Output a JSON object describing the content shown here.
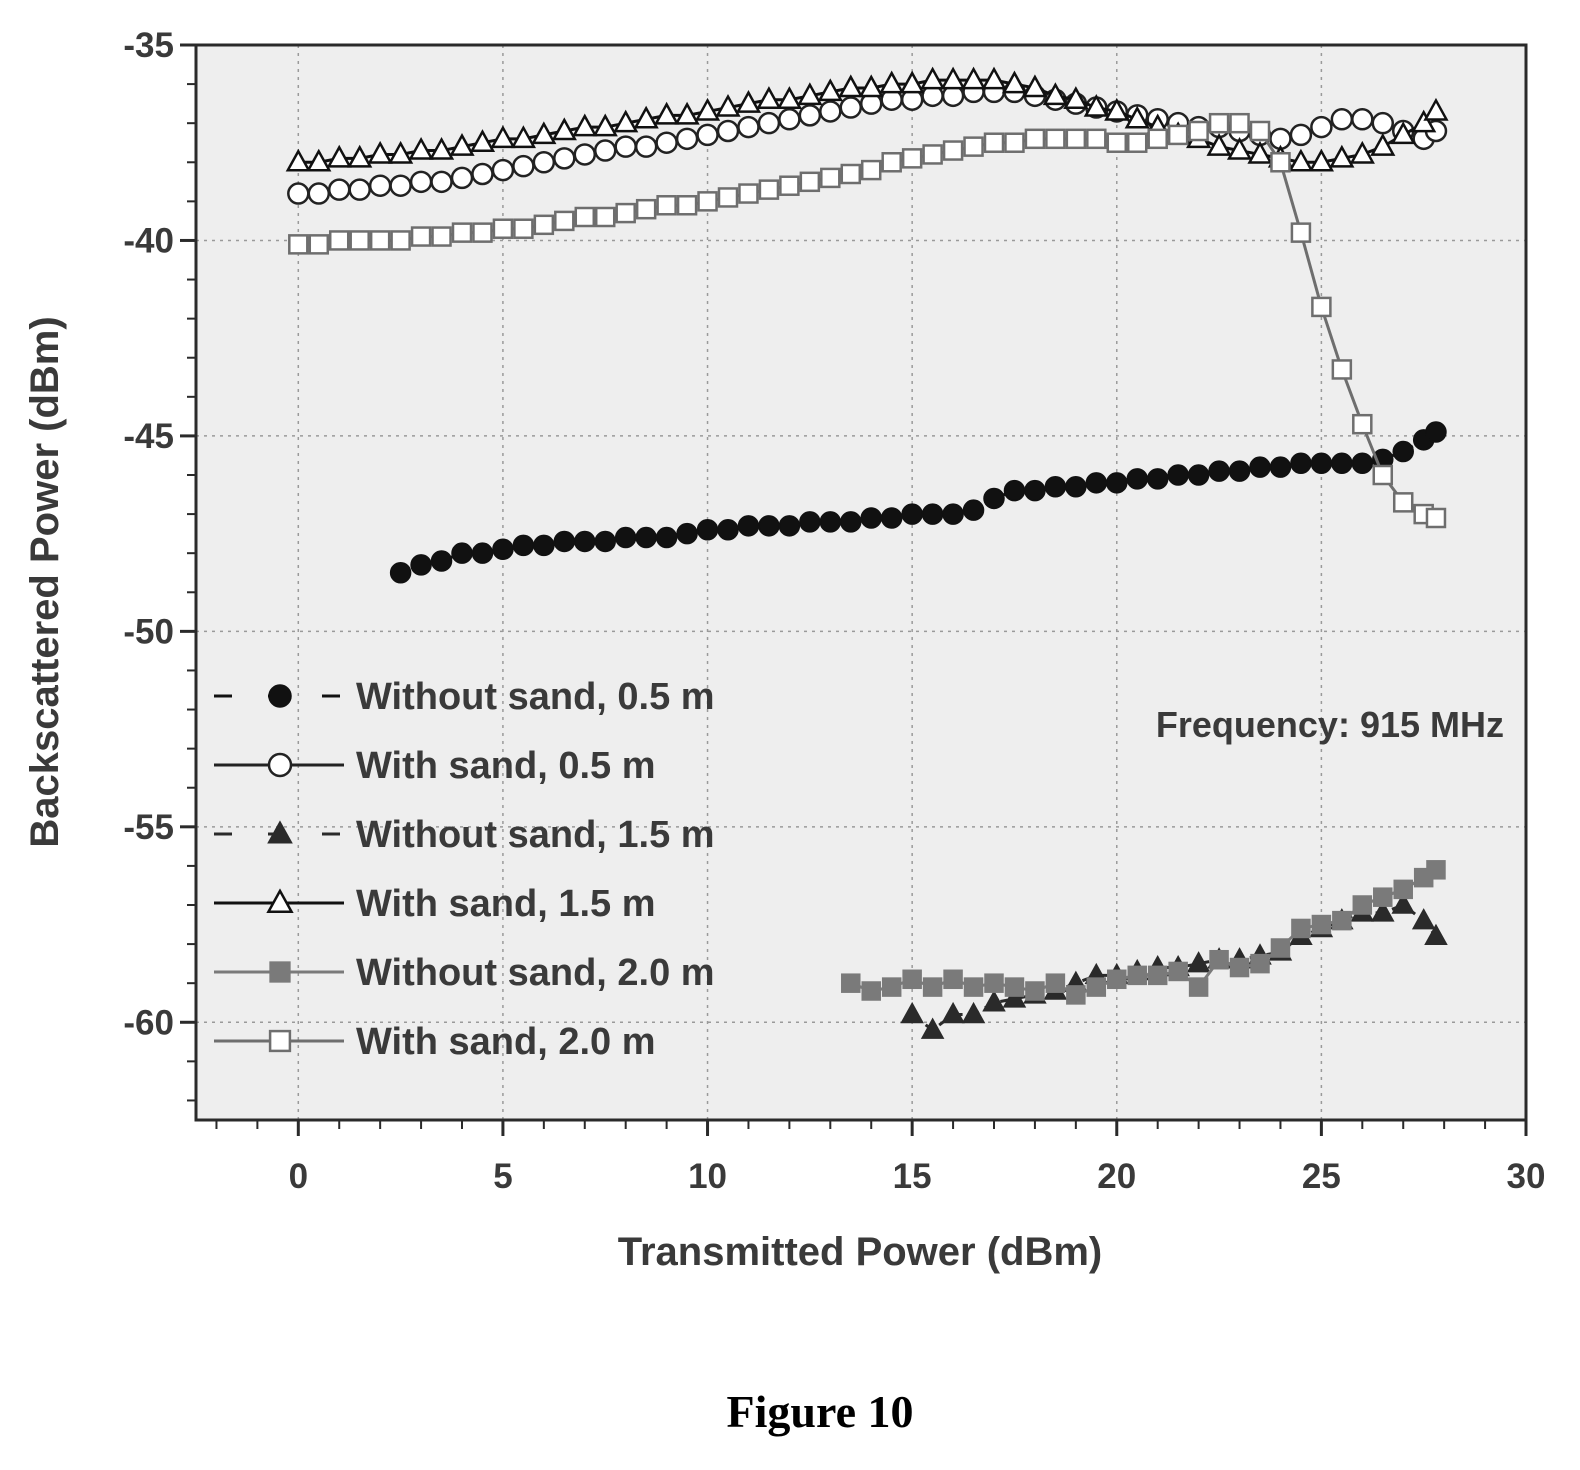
{
  "caption": "Figure 10",
  "chart_data": {
    "type": "scatter",
    "title": "",
    "xlabel": "Transmitted Power (dBm)",
    "ylabel": "Backscattered Power (dBm)",
    "xlim": [
      -2.5,
      30
    ],
    "ylim": [
      -62.5,
      -35
    ],
    "xticks": [
      0,
      5,
      10,
      15,
      20,
      25,
      30
    ],
    "yticks": [
      -35,
      -40,
      -45,
      -50,
      -55,
      -60
    ],
    "xtick_labels": [
      "0",
      "5",
      "10",
      "15",
      "20",
      "25",
      "30"
    ],
    "ytick_labels": [
      "-35",
      "-40",
      "-45",
      "-50",
      "-55",
      "-60"
    ],
    "grid": true,
    "legend_position": "bottom-left",
    "annotation": "Frequency: 915 MHz",
    "series": [
      {
        "name": "Without sand, 0.5 m",
        "marker": "filled-circle",
        "line": "dashed",
        "color": "#111111",
        "x": [
          2.5,
          3,
          3.5,
          4,
          4.5,
          5,
          5.5,
          6,
          6.5,
          7,
          7.5,
          8,
          8.5,
          9,
          9.5,
          10,
          10.5,
          11,
          11.5,
          12,
          12.5,
          13,
          13.5,
          14,
          14.5,
          15,
          15.5,
          16,
          16.5,
          17,
          17.5,
          18,
          18.5,
          19,
          19.5,
          20,
          20.5,
          21,
          21.5,
          22,
          22.5,
          23,
          23.5,
          24,
          24.5,
          25,
          25.5,
          26,
          26.5,
          27,
          27.5,
          27.8
        ],
        "y": [
          -48.5,
          -48.3,
          -48.2,
          -48.0,
          -48.0,
          -47.9,
          -47.8,
          -47.8,
          -47.7,
          -47.7,
          -47.7,
          -47.6,
          -47.6,
          -47.6,
          -47.5,
          -47.4,
          -47.4,
          -47.3,
          -47.3,
          -47.3,
          -47.2,
          -47.2,
          -47.2,
          -47.1,
          -47.1,
          -47.0,
          -47.0,
          -47.0,
          -46.9,
          -46.6,
          -46.4,
          -46.4,
          -46.3,
          -46.3,
          -46.2,
          -46.2,
          -46.1,
          -46.1,
          -46.0,
          -46.0,
          -45.9,
          -45.9,
          -45.8,
          -45.8,
          -45.7,
          -45.7,
          -45.7,
          -45.7,
          -45.6,
          -45.4,
          -45.1,
          -44.9
        ]
      },
      {
        "name": "With sand, 0.5 m",
        "marker": "open-circle",
        "line": "solid",
        "color": "#222222",
        "x": [
          0,
          0.5,
          1,
          1.5,
          2,
          2.5,
          3,
          3.5,
          4,
          4.5,
          5,
          5.5,
          6,
          6.5,
          7,
          7.5,
          8,
          8.5,
          9,
          9.5,
          10,
          10.5,
          11,
          11.5,
          12,
          12.5,
          13,
          13.5,
          14,
          14.5,
          15,
          15.5,
          16,
          16.5,
          17,
          17.5,
          18,
          18.5,
          19,
          19.5,
          20,
          20.5,
          21,
          21.5,
          22,
          22.5,
          23,
          23.5,
          24,
          24.5,
          25,
          25.5,
          26,
          26.5,
          27,
          27.5,
          27.8
        ],
        "y": [
          -38.8,
          -38.8,
          -38.7,
          -38.7,
          -38.6,
          -38.6,
          -38.5,
          -38.5,
          -38.4,
          -38.3,
          -38.2,
          -38.1,
          -38.0,
          -37.9,
          -37.8,
          -37.7,
          -37.6,
          -37.6,
          -37.5,
          -37.4,
          -37.3,
          -37.2,
          -37.1,
          -37.0,
          -36.9,
          -36.8,
          -36.7,
          -36.6,
          -36.5,
          -36.4,
          -36.4,
          -36.3,
          -36.3,
          -36.2,
          -36.2,
          -36.2,
          -36.3,
          -36.4,
          -36.5,
          -36.6,
          -36.7,
          -36.8,
          -36.9,
          -37.0,
          -37.1,
          -37.1,
          -37.2,
          -37.3,
          -37.4,
          -37.3,
          -37.1,
          -36.9,
          -36.9,
          -37.0,
          -37.2,
          -37.4,
          -37.2
        ]
      },
      {
        "name": "Without sand, 1.5 m",
        "marker": "filled-triangle",
        "line": "dashed",
        "color": "#2a2a2a",
        "x": [
          15,
          15.5,
          16,
          16.5,
          17,
          17.5,
          18,
          18.5,
          19,
          19.5,
          20,
          20.5,
          21,
          21.5,
          22,
          22.5,
          23,
          23.5,
          24,
          24.5,
          25,
          25.5,
          26,
          26.5,
          27,
          27.5,
          27.8
        ],
        "y": [
          -59.8,
          -60.2,
          -59.8,
          -59.8,
          -59.5,
          -59.4,
          -59.3,
          -59.2,
          -59.0,
          -58.8,
          -58.8,
          -58.7,
          -58.6,
          -58.6,
          -58.5,
          -58.4,
          -58.4,
          -58.3,
          -58.2,
          -57.8,
          -57.6,
          -57.4,
          -57.2,
          -57.2,
          -57.0,
          -57.4,
          -57.8
        ]
      },
      {
        "name": "With sand, 1.5 m",
        "marker": "open-triangle",
        "line": "solid",
        "color": "#111111",
        "x": [
          0,
          0.5,
          1,
          1.5,
          2,
          2.5,
          3,
          3.5,
          4,
          4.5,
          5,
          5.5,
          6,
          6.5,
          7,
          7.5,
          8,
          8.5,
          9,
          9.5,
          10,
          10.5,
          11,
          11.5,
          12,
          12.5,
          13,
          13.5,
          14,
          14.5,
          15,
          15.5,
          16,
          16.5,
          17,
          17.5,
          18,
          18.5,
          19,
          19.5,
          20,
          20.5,
          21,
          21.5,
          22,
          22.5,
          23,
          23.5,
          24,
          24.5,
          25,
          25.5,
          26,
          26.5,
          27,
          27.5,
          27.8
        ],
        "y": [
          -38.0,
          -38.0,
          -37.9,
          -37.9,
          -37.8,
          -37.8,
          -37.7,
          -37.7,
          -37.6,
          -37.5,
          -37.4,
          -37.4,
          -37.3,
          -37.2,
          -37.1,
          -37.1,
          -37.0,
          -36.9,
          -36.8,
          -36.8,
          -36.7,
          -36.6,
          -36.5,
          -36.4,
          -36.4,
          -36.3,
          -36.2,
          -36.1,
          -36.1,
          -36.0,
          -36.0,
          -35.9,
          -35.9,
          -35.9,
          -35.9,
          -36.0,
          -36.1,
          -36.3,
          -36.4,
          -36.6,
          -36.7,
          -36.9,
          -37.1,
          -37.3,
          -37.4,
          -37.6,
          -37.7,
          -37.8,
          -37.9,
          -38.0,
          -38.0,
          -37.9,
          -37.8,
          -37.6,
          -37.3,
          -37.0,
          -36.7
        ]
      },
      {
        "name": "Without sand, 2.0 m",
        "marker": "filled-square",
        "line": "solid",
        "color": "#7a7a7a",
        "x": [
          13.5,
          14,
          14.5,
          15,
          15.5,
          16,
          16.5,
          17,
          17.5,
          18,
          18.5,
          19,
          19.5,
          20,
          20.5,
          21,
          21.5,
          22,
          22.5,
          23,
          23.5,
          24,
          24.5,
          25,
          25.5,
          26,
          26.5,
          27,
          27.5,
          27.8
        ],
        "y": [
          -59.0,
          -59.2,
          -59.1,
          -58.9,
          -59.1,
          -58.9,
          -59.1,
          -59.0,
          -59.1,
          -59.2,
          -59.0,
          -59.3,
          -59.1,
          -58.9,
          -58.8,
          -58.8,
          -58.7,
          -59.1,
          -58.4,
          -58.6,
          -58.5,
          -58.1,
          -57.6,
          -57.5,
          -57.4,
          -57.0,
          -56.8,
          -56.6,
          -56.3,
          -56.1
        ]
      },
      {
        "name": "With sand, 2.0 m",
        "marker": "open-square",
        "line": "solid",
        "color": "#6e6e6e",
        "x": [
          0,
          0.5,
          1,
          1.5,
          2,
          2.5,
          3,
          3.5,
          4,
          4.5,
          5,
          5.5,
          6,
          6.5,
          7,
          7.5,
          8,
          8.5,
          9,
          9.5,
          10,
          10.5,
          11,
          11.5,
          12,
          12.5,
          13,
          13.5,
          14,
          14.5,
          15,
          15.5,
          16,
          16.5,
          17,
          17.5,
          18,
          18.5,
          19,
          19.5,
          20,
          20.5,
          21,
          21.5,
          22,
          22.5,
          23,
          23.5,
          24,
          24.5,
          25,
          25.5,
          26,
          26.5,
          27,
          27.5,
          27.8
        ],
        "y": [
          -40.1,
          -40.1,
          -40.0,
          -40.0,
          -40.0,
          -40.0,
          -39.9,
          -39.9,
          -39.8,
          -39.8,
          -39.7,
          -39.7,
          -39.6,
          -39.5,
          -39.4,
          -39.4,
          -39.3,
          -39.2,
          -39.1,
          -39.1,
          -39.0,
          -38.9,
          -38.8,
          -38.7,
          -38.6,
          -38.5,
          -38.4,
          -38.3,
          -38.2,
          -38.0,
          -37.9,
          -37.8,
          -37.7,
          -37.6,
          -37.5,
          -37.5,
          -37.4,
          -37.4,
          -37.4,
          -37.4,
          -37.5,
          -37.5,
          -37.4,
          -37.3,
          -37.2,
          -37.0,
          -37.0,
          -37.2,
          -38.0,
          -39.8,
          -41.7,
          -43.3,
          -44.7,
          -46.0,
          -46.7,
          -47.0,
          -47.1
        ]
      }
    ]
  }
}
